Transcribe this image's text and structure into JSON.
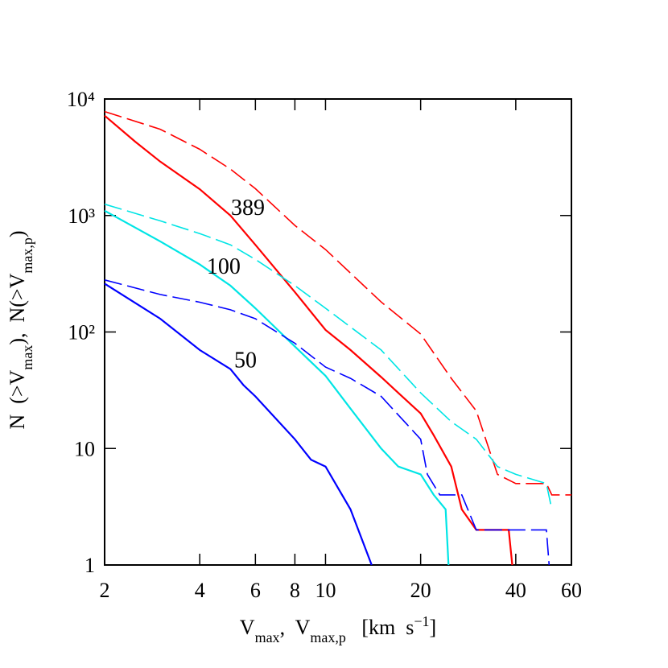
{
  "chart_data": {
    "type": "line",
    "xlog": true,
    "ylog": true,
    "xlim": [
      2,
      60
    ],
    "ylim": [
      1,
      10000
    ],
    "xticks": [
      2,
      4,
      6,
      8,
      10,
      20,
      40,
      60
    ],
    "yticks": [
      1,
      10,
      {
        "value": 100,
        "label": "10²"
      },
      {
        "value": 1000,
        "label": "10³"
      },
      {
        "value": 10000,
        "label": "10⁴"
      }
    ],
    "xlabel": [
      {
        "text": "V"
      },
      {
        "text": "max",
        "sub": true
      },
      {
        "text": ",  V"
      },
      {
        "text": "max,p",
        "sub": true
      },
      {
        "text": "   [km  s"
      },
      {
        "text": "−1",
        "sup": true
      },
      {
        "text": "]"
      }
    ],
    "ylabel": [
      {
        "text": "N  (>V"
      },
      {
        "text": "max",
        "sub": true
      },
      {
        "text": "),  N(>V"
      },
      {
        "text": "max,p",
        "sub": true
      },
      {
        "text": ")"
      }
    ],
    "annotations": [
      {
        "text": "389",
        "x": 5.68,
        "y": 1186,
        "color": "#ff0000"
      },
      {
        "text": "100",
        "x": 4.76,
        "y": 371,
        "color": "#00e5e5"
      },
      {
        "text": "50",
        "x": 5.58,
        "y": 58,
        "color": "#0000ff"
      }
    ],
    "series": [
      {
        "color": "#ff0000",
        "dashed": false,
        "x": [
          2,
          2.5,
          3,
          4,
          5,
          6,
          8,
          10,
          12,
          15,
          17,
          20,
          22,
          25,
          27,
          30,
          38,
          39
        ],
        "values": [
          7200,
          4300,
          2900,
          1680,
          1000,
          560,
          220,
          104,
          70,
          41,
          30,
          20,
          13,
          7,
          3,
          2,
          2,
          1
        ]
      },
      {
        "color": "#ff0000",
        "dashed": true,
        "x": [
          2,
          3,
          4,
          5,
          6,
          8,
          10,
          15,
          20,
          25,
          30,
          35,
          40,
          50,
          52,
          60
        ],
        "values": [
          7800,
          5500,
          3700,
          2500,
          1700,
          822,
          510,
          181,
          96,
          40,
          21,
          6,
          5,
          5,
          4,
          4
        ]
      },
      {
        "color": "#00e5e5",
        "dashed": false,
        "x": [
          2,
          3,
          4,
          5,
          6,
          8,
          10,
          12,
          15,
          17,
          20,
          22,
          24,
          24.5
        ],
        "values": [
          1100,
          600,
          380,
          250,
          160,
          75,
          42,
          22,
          10,
          7,
          6,
          4,
          3,
          1
        ]
      },
      {
        "color": "#00e5e5",
        "dashed": true,
        "x": [
          2,
          3,
          4,
          5,
          6,
          8,
          10,
          15,
          20,
          25,
          30,
          35,
          40,
          50,
          52
        ],
        "values": [
          1250,
          900,
          700,
          560,
          420,
          250,
          160,
          70,
          30,
          17,
          12,
          7,
          6,
          5,
          3
        ]
      },
      {
        "color": "#0000ff",
        "dashed": false,
        "x": [
          2,
          3,
          4,
          5,
          5.5,
          6,
          8,
          9,
          10,
          12,
          14
        ],
        "values": [
          260,
          130,
          70,
          48,
          35,
          28,
          12,
          8,
          7,
          3,
          1
        ]
      },
      {
        "color": "#0000ff",
        "dashed": true,
        "x": [
          2,
          3,
          4,
          5,
          6,
          8,
          10,
          12,
          15,
          20,
          21,
          23,
          27,
          30,
          50,
          51
        ],
        "values": [
          280,
          210,
          180,
          155,
          130,
          80,
          50,
          40,
          28,
          12,
          6,
          4,
          4,
          2,
          2,
          1
        ]
      }
    ]
  }
}
